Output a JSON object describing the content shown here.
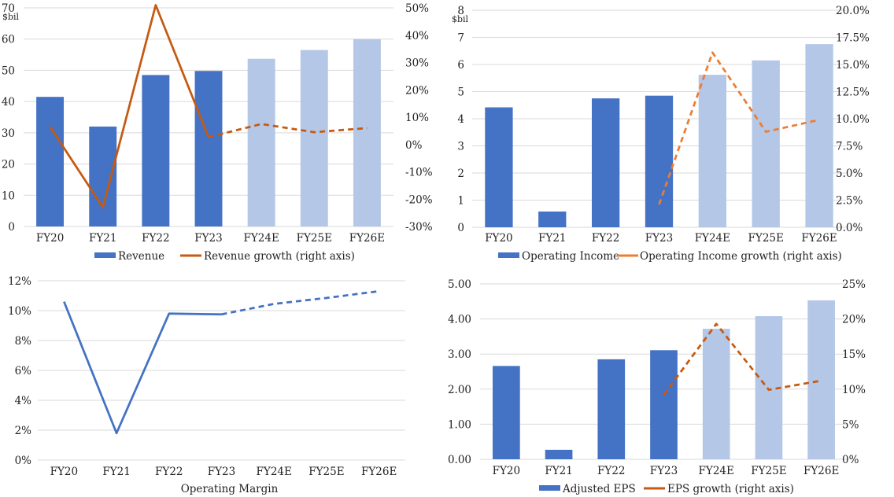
{
  "colors": {
    "actual_bar": "#4472C4",
    "estimate_bar": "#B4C7E7",
    "growth_line_dark": "#C55A11",
    "growth_line_light": "#ED7D31",
    "margin_line": "#4472C4",
    "grid": "#d9d9d9"
  },
  "chart_data": [
    {
      "id": "revenue",
      "type": "bar",
      "categories": [
        "FY20",
        "FY21",
        "FY22",
        "FY23",
        "FY24E",
        "FY25E",
        "FY26E"
      ],
      "estimate_from_index": 4,
      "unit_label": "$bil",
      "left_ticks": [
        "0",
        "10",
        "20",
        "30",
        "40",
        "50",
        "60",
        "70"
      ],
      "right_ticks": [
        "-30%",
        "-20%",
        "-10%",
        "0%",
        "10%",
        "20%",
        "30%",
        "40%",
        "50%"
      ],
      "ylim": [
        0,
        70
      ],
      "y2lim": [
        -30,
        50
      ],
      "bars": {
        "name": "Revenue",
        "values": [
          41.5,
          32.0,
          48.5,
          49.8,
          53.7,
          56.5,
          60.0
        ]
      },
      "line": {
        "name": "Revenue growth (right axis)",
        "values": [
          6.5,
          -23.0,
          51.0,
          2.7,
          7.5,
          4.5,
          6.0
        ],
        "dashed_from_index": 3,
        "color_key": "growth_line_dark"
      }
    },
    {
      "id": "operating-income",
      "type": "bar",
      "categories": [
        "FY20",
        "FY21",
        "FY22",
        "FY23",
        "FY24E",
        "FY25E",
        "FY26E"
      ],
      "estimate_from_index": 4,
      "unit_label": "$bil",
      "left_ticks": [
        "0",
        "1",
        "2",
        "3",
        "4",
        "5",
        "6",
        "7",
        "8"
      ],
      "right_ticks": [
        "0.0%",
        "2.5%",
        "5.0%",
        "7.5%",
        "10.0%",
        "12.5%",
        "15.0%",
        "17.5%",
        "20.0%"
      ],
      "ylim": [
        0,
        8
      ],
      "y2lim": [
        0,
        20
      ],
      "bars": {
        "name": "Operating Income",
        "values": [
          4.42,
          0.58,
          4.75,
          4.85,
          5.62,
          6.15,
          6.75
        ]
      },
      "line": {
        "name": "Operating Income growth (right axis)",
        "start_index": 3,
        "values": [
          null,
          null,
          null,
          2.1,
          16.1,
          8.8,
          9.9
        ],
        "dashed_from_index": 3,
        "color_key": "growth_line_light"
      }
    },
    {
      "id": "operating-margin",
      "type": "line",
      "categories": [
        "FY20",
        "FY21",
        "FY22",
        "FY23",
        "FY24E",
        "FY25E",
        "FY26E"
      ],
      "left_ticks": [
        "0%",
        "2%",
        "4%",
        "6%",
        "8%",
        "10%",
        "12%"
      ],
      "ylim": [
        0,
        12
      ],
      "xlabel": "Operating Margin",
      "line": {
        "name": "Operating Margin",
        "values": [
          10.6,
          1.8,
          9.8,
          9.75,
          10.45,
          10.85,
          11.3
        ],
        "dashed_from_index": 3,
        "color_key": "margin_line"
      }
    },
    {
      "id": "adjusted-eps",
      "type": "bar",
      "categories": [
        "FY20",
        "FY21",
        "FY22",
        "FY23",
        "FY24E",
        "FY25E",
        "FY26E"
      ],
      "estimate_from_index": 4,
      "left_ticks": [
        "0.00",
        "1.00",
        "2.00",
        "3.00",
        "4.00",
        "5.00"
      ],
      "right_ticks": [
        "0%",
        "5%",
        "10%",
        "15%",
        "20%",
        "25%"
      ],
      "ylim": [
        0,
        5
      ],
      "y2lim": [
        0,
        25
      ],
      "bars": {
        "name": "Adjusted EPS",
        "values": [
          2.66,
          0.27,
          2.85,
          3.11,
          3.72,
          4.08,
          4.53
        ]
      },
      "line": {
        "name": "EPS growth (right axis)",
        "values": [
          null,
          null,
          null,
          9.2,
          19.3,
          9.9,
          11.2
        ],
        "dashed_from_index": 3,
        "color_key": "growth_line_dark"
      }
    }
  ]
}
